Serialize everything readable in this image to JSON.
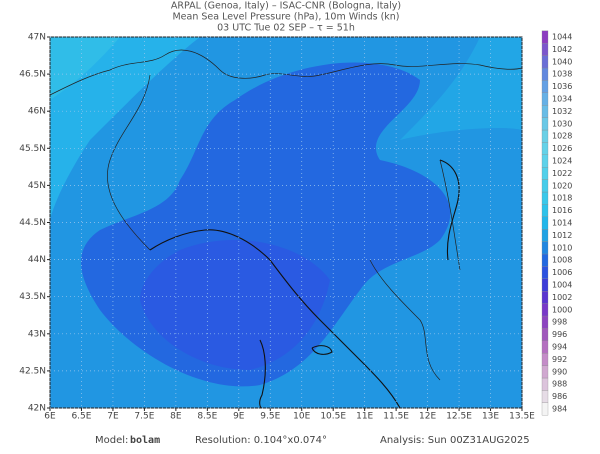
{
  "header": {
    "line1": "ARPAL (Genoa, Italy)  –  ISAC-CNR (Bologna, Italy)",
    "line2": "Mean Sea Level Pressure (hPa), 10m Winds (kn)",
    "line3": "03 UTC Tue 02 SEP  –  τ = 51h"
  },
  "map": {
    "lon_range": [
      6,
      13.5
    ],
    "lat_range": [
      42,
      47
    ],
    "lon_ticks": [
      {
        "value": 6,
        "label": "6E"
      },
      {
        "value": 6.5,
        "label": "6.5E"
      },
      {
        "value": 7,
        "label": "7E"
      },
      {
        "value": 7.5,
        "label": "7.5E"
      },
      {
        "value": 8,
        "label": "8E"
      },
      {
        "value": 8.5,
        "label": "8.5E"
      },
      {
        "value": 9,
        "label": "9E"
      },
      {
        "value": 9.5,
        "label": "9.5E"
      },
      {
        "value": 10,
        "label": "10E"
      },
      {
        "value": 10.5,
        "label": "10.5E"
      },
      {
        "value": 11,
        "label": "11E"
      },
      {
        "value": 11.5,
        "label": "11.5E"
      },
      {
        "value": 12,
        "label": "12E"
      },
      {
        "value": 12.5,
        "label": "12.5E"
      },
      {
        "value": 13,
        "label": "13E"
      },
      {
        "value": 13.5,
        "label": "13.5E"
      }
    ],
    "lat_ticks": [
      {
        "value": 42,
        "label": "42N"
      },
      {
        "value": 42.5,
        "label": "42.5N"
      },
      {
        "value": 43,
        "label": "43N"
      },
      {
        "value": 43.5,
        "label": "43.5N"
      },
      {
        "value": 44,
        "label": "44N"
      },
      {
        "value": 44.5,
        "label": "44.5N"
      },
      {
        "value": 45,
        "label": "45N"
      },
      {
        "value": 45.5,
        "label": "45.5N"
      },
      {
        "value": 46,
        "label": "46N"
      },
      {
        "value": 46.5,
        "label": "46.5N"
      },
      {
        "value": 47,
        "label": "47N"
      }
    ]
  },
  "colorbar": {
    "levels": [
      984,
      986,
      988,
      990,
      992,
      994,
      996,
      998,
      1000,
      1002,
      1004,
      1006,
      1008,
      1010,
      1012,
      1014,
      1016,
      1018,
      1020,
      1022,
      1024,
      1026,
      1028,
      1030,
      1032,
      1034,
      1036,
      1038,
      1040,
      1042,
      1044
    ],
    "colors": [
      "#f4f4f4",
      "#e6dce6",
      "#dcc4dc",
      "#d0a8d0",
      "#c48cc8",
      "#b470c0",
      "#a058bc",
      "#8c44c0",
      "#7838c8",
      "#5a34d0",
      "#3c3cd8",
      "#2c52e0",
      "#2268e0",
      "#2186e0",
      "#20a2e4",
      "#22b6ea",
      "#2ec2ea",
      "#3ac8ea",
      "#46ccea",
      "#52d0ea",
      "#5ed2ea",
      "#64d2e8",
      "#6ad0e6",
      "#6ac8e6",
      "#68bce6",
      "#66b0e6",
      "#64a0e4",
      "#6288de",
      "#6a6ed6",
      "#7c56cc",
      "#8c3cc0"
    ]
  },
  "footer": {
    "model_label": "Model:",
    "model": "bolam",
    "resolution": "Resolution: 0.104°x0.074°",
    "analysis": "Analysis: Sun 00Z31AUG2025"
  }
}
